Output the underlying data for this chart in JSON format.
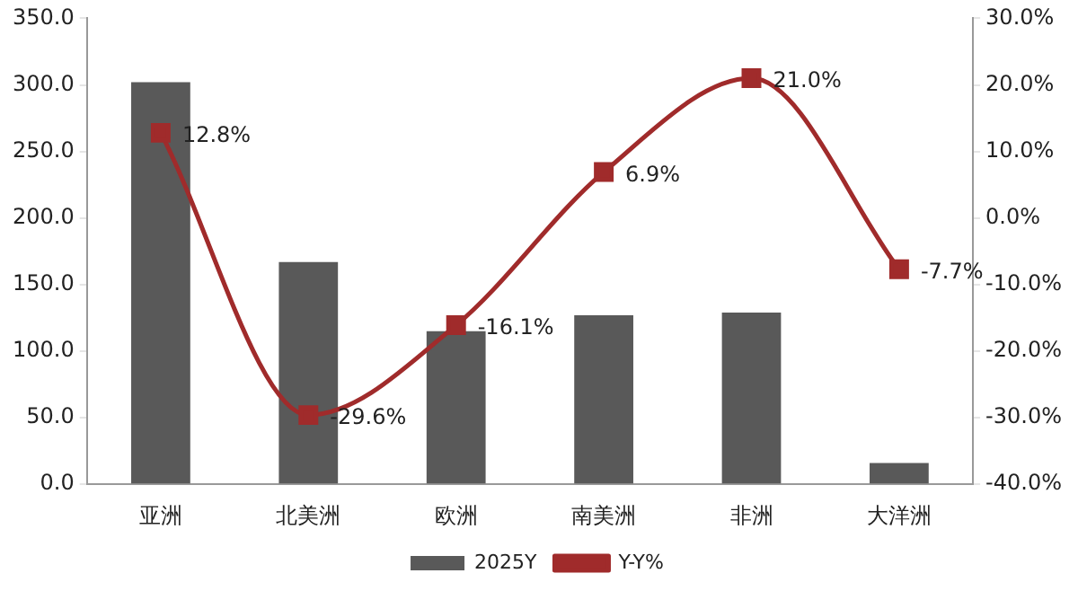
{
  "chart_data": {
    "type": "bar",
    "categories": [
      "亚洲",
      "北美洲",
      "欧洲",
      "南美洲",
      "非洲",
      "大洋洲"
    ],
    "series": [
      {
        "name": "2025Y",
        "color": "#595959",
        "values": [
          302,
          167,
          115,
          127,
          129,
          16
        ]
      },
      {
        "name": "Y-Y%",
        "type": "line",
        "axis": "y2",
        "color": "#a02b2b",
        "values": [
          12.8,
          -29.6,
          -16.1,
          6.9,
          21.0,
          -7.7
        ],
        "value_labels": [
          "12.8%",
          "-29.6%",
          "-16.1%",
          "6.9%",
          "21.0%",
          "-7.7%"
        ]
      }
    ],
    "ylim": [
      0,
      350
    ],
    "yticks": [
      {
        "value": 0,
        "label": "0.0"
      },
      {
        "value": 50,
        "label": "50.0"
      },
      {
        "value": 100,
        "label": "100.0"
      },
      {
        "value": 150,
        "label": "150.0"
      },
      {
        "value": 200,
        "label": "200.0"
      },
      {
        "value": 250,
        "label": "250.0"
      },
      {
        "value": 300,
        "label": "300.0"
      },
      {
        "value": 350,
        "label": "350.0"
      }
    ],
    "y2lim": [
      -40,
      30
    ],
    "y2ticks": [
      {
        "value": -40,
        "label": "-40.0%"
      },
      {
        "value": -30,
        "label": "-30.0%"
      },
      {
        "value": -20,
        "label": "-20.0%"
      },
      {
        "value": -10,
        "label": "-10.0%"
      },
      {
        "value": 0,
        "label": "0.0%"
      },
      {
        "value": 10,
        "label": "10.0%"
      },
      {
        "value": 20,
        "label": "20.0%"
      },
      {
        "value": 30,
        "label": "30.0%"
      }
    ],
    "marker": "square",
    "grid": false,
    "legend": "bottom"
  }
}
